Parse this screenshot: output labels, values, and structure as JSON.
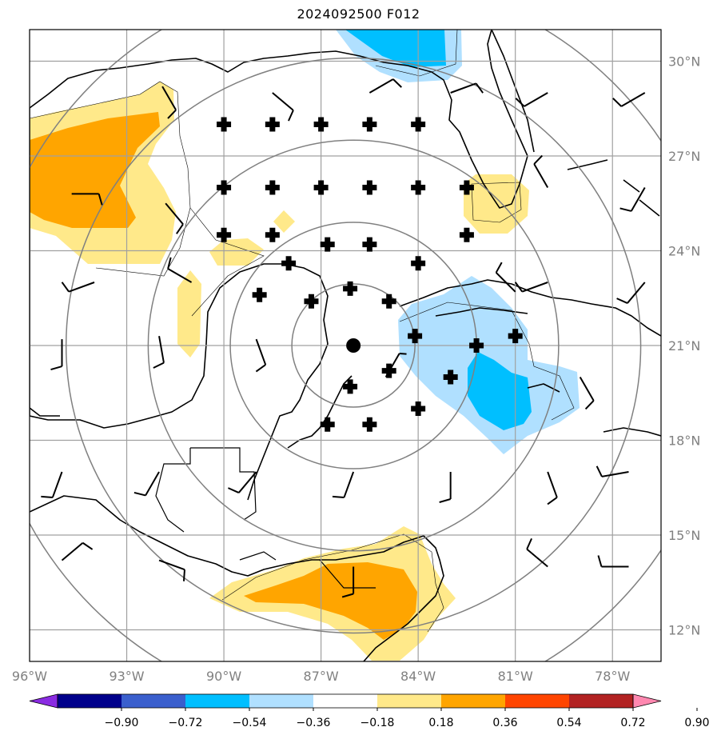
{
  "title": "2024092500 F012",
  "map": {
    "lon_range": [
      -96,
      -76.5
    ],
    "lat_range": [
      11,
      31
    ],
    "lat_ticks": [
      {
        "value": 30,
        "label": "30°N"
      },
      {
        "value": 27,
        "label": "27°N"
      },
      {
        "value": 24,
        "label": "24°N"
      },
      {
        "value": 21,
        "label": "21°N"
      },
      {
        "value": 18,
        "label": "18°N"
      },
      {
        "value": 15,
        "label": "15°N"
      },
      {
        "value": 12,
        "label": "12°N"
      }
    ],
    "lon_ticks": [
      {
        "value": -96,
        "label": "96°W"
      },
      {
        "value": -93,
        "label": "93°W"
      },
      {
        "value": -90,
        "label": "90°W"
      },
      {
        "value": -87,
        "label": "87°W"
      },
      {
        "value": -84,
        "label": "84°W"
      },
      {
        "value": -81,
        "label": "81°W"
      },
      {
        "value": -78,
        "label": "78°W"
      }
    ],
    "center": {
      "lon": -86.0,
      "lat": 21.0
    },
    "range_rings_deg": [
      1.5,
      3.0,
      5.0,
      7.0,
      9.0
    ],
    "plus_markers": [
      [
        -90.0,
        28.0
      ],
      [
        -88.5,
        28.0
      ],
      [
        -87.0,
        28.0
      ],
      [
        -85.5,
        28.0
      ],
      [
        -84.0,
        28.0
      ],
      [
        -90.0,
        26.0
      ],
      [
        -88.5,
        26.0
      ],
      [
        -87.0,
        26.0
      ],
      [
        -85.5,
        26.0
      ],
      [
        -84.0,
        26.0
      ],
      [
        -82.5,
        26.0
      ],
      [
        -90.0,
        24.5
      ],
      [
        -88.5,
        24.5
      ],
      [
        -82.5,
        24.5
      ],
      [
        -86.8,
        24.2
      ],
      [
        -85.5,
        24.2
      ],
      [
        -88.0,
        23.6
      ],
      [
        -84.0,
        23.6
      ],
      [
        -86.1,
        22.8
      ],
      [
        -88.9,
        22.6
      ],
      [
        -87.3,
        22.4
      ],
      [
        -84.9,
        22.4
      ],
      [
        -84.1,
        21.3
      ],
      [
        -82.2,
        21.0
      ],
      [
        -81.0,
        21.3
      ],
      [
        -84.9,
        20.2
      ],
      [
        -83.0,
        20.0
      ],
      [
        -86.1,
        19.7
      ],
      [
        -84.0,
        19.0
      ],
      [
        -86.8,
        18.5
      ],
      [
        -85.5,
        18.5
      ]
    ],
    "barbs": [
      [
        -94.7,
        25.8,
        90,
        10
      ],
      [
        -91.8,
        25.5,
        140,
        10
      ],
      [
        -95.0,
        21.2,
        180,
        10
      ],
      [
        -92.0,
        21.3,
        170,
        10
      ],
      [
        -89.0,
        21.2,
        160,
        10
      ],
      [
        -85.0,
        20.0,
        30,
        5
      ],
      [
        -81.0,
        22.7,
        315,
        10
      ],
      [
        -79.0,
        20.0,
        150,
        10
      ],
      [
        -95.0,
        17.0,
        200,
        10
      ],
      [
        -92.0,
        17.0,
        210,
        10
      ],
      [
        -89.0,
        17.0,
        220,
        10
      ],
      [
        -86.0,
        17.0,
        200,
        10
      ],
      [
        -83.0,
        17.0,
        180,
        10
      ],
      [
        -80.0,
        17.0,
        160,
        10
      ],
      [
        -77.5,
        17.0,
        260,
        10
      ],
      [
        -95.0,
        14.2,
        50,
        10
      ],
      [
        -92.0,
        14.2,
        110,
        10
      ],
      [
        -86.0,
        14.0,
        180,
        10
      ],
      [
        -80.0,
        14.0,
        310,
        10
      ],
      [
        -77.5,
        14.0,
        270,
        10
      ],
      [
        -91.9,
        29.2,
        150,
        10
      ],
      [
        -88.5,
        29.0,
        130,
        10
      ],
      [
        -85.5,
        29.0,
        60,
        10
      ],
      [
        -83.0,
        29.0,
        70,
        10
      ],
      [
        -80.0,
        29.0,
        240,
        10
      ],
      [
        -77.0,
        29.0,
        240,
        10
      ],
      [
        -80.0,
        26.0,
        330,
        10
      ],
      [
        -77.0,
        26.0,
        210,
        10
      ],
      [
        -80.0,
        23.0,
        250,
        10
      ],
      [
        -77.0,
        23.0,
        220,
        10
      ],
      [
        -94.0,
        23.0,
        250,
        10
      ],
      [
        -91.0,
        23.0,
        300,
        10
      ]
    ]
  },
  "colorbar": {
    "labels": [
      "−0.90",
      "−0.72",
      "−0.54",
      "−0.36",
      "−0.18",
      "0.18",
      "0.36",
      "0.54",
      "0.72",
      "0.90"
    ],
    "colors": [
      "#8a2be2",
      "#00008b",
      "#3a5fcd",
      "#00bfff",
      "#b0e0ff",
      "#ffffff",
      "#ffe98a",
      "#ffa500",
      "#ff4500",
      "#b22222",
      "#ff88b0"
    ]
  },
  "field_colors": {
    "pos_light": "#ffe98a",
    "pos_strong": "#ffa500",
    "neg_light": "#b0e0ff",
    "neg_strong": "#00bfff"
  }
}
